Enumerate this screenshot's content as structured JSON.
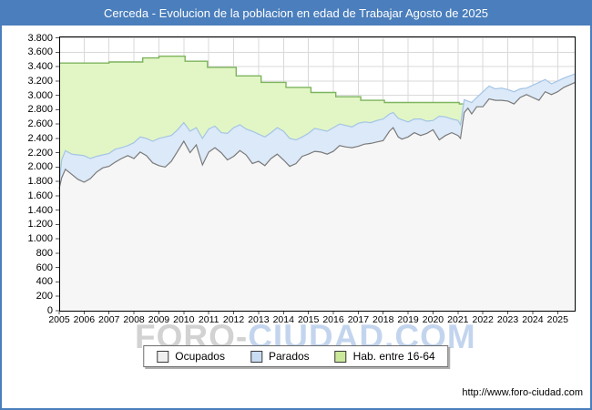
{
  "title": "Cerceda - Evolucion de la poblacion en edad de Trabajar Agosto de 2025",
  "watermark": {
    "part1": "FORO-",
    "part2": "CIUDAD.COM"
  },
  "footer": {
    "url": "http://www.foro-ciudad.com"
  },
  "legend": [
    {
      "label": "Ocupados",
      "swatch": "#efefef"
    },
    {
      "label": "Parados",
      "swatch": "#c9ddf2"
    },
    {
      "label": "Hab. entre 16-64",
      "swatch": "#cbe89b"
    }
  ],
  "colors": {
    "titlebar": "#4a7ebc",
    "frame_border": "#4a7ebc",
    "grid": "#d9d9d9",
    "plot_border": "#000000",
    "hab_fill": "#e2f6c5",
    "hab_line": "#7db45e",
    "parados_fill": "#dbe9f8",
    "parados_line": "#a4c4e4",
    "ocupados_fill": "#f6f6f6",
    "ocupados_line": "#7a7a7a"
  },
  "chart_data": {
    "type": "area",
    "title": "Cerceda - Evolucion de la poblacion en edad de Trabajar Agosto de 2025",
    "xlabel": "",
    "ylabel": "",
    "grid": true,
    "legend_position": "bottom",
    "xlim": [
      2005,
      2025.72
    ],
    "ylim": [
      0,
      3820
    ],
    "x_ticks": [
      2005,
      2006,
      2007,
      2008,
      2009,
      2010,
      2011,
      2012,
      2013,
      2014,
      2015,
      2016,
      2017,
      2018,
      2019,
      2020,
      2021,
      2022,
      2023,
      2024,
      2025
    ],
    "y_tick_values": [
      0,
      200,
      400,
      600,
      800,
      1000,
      1200,
      1400,
      1600,
      1800,
      2000,
      2200,
      2400,
      2600,
      2800,
      3000,
      3200,
      3400,
      3600,
      3800
    ],
    "y_tick_labels": [
      "0",
      "200",
      "400",
      "600",
      "800",
      "1.000",
      "1.200",
      "1.400",
      "1.600",
      "1.800",
      "2.000",
      "2.200",
      "2.400",
      "2.600",
      "2.800",
      "3.000",
      "3.200",
      "3.400",
      "3.600",
      "3.800"
    ],
    "x": [
      2005,
      2005.1,
      2005.25,
      2005.5,
      2005.75,
      2006,
      2006.25,
      2006.5,
      2006.75,
      2007,
      2007.25,
      2007.5,
      2007.75,
      2008,
      2008.25,
      2008.5,
      2008.75,
      2009,
      2009.25,
      2009.5,
      2009.75,
      2010,
      2010.25,
      2010.5,
      2010.75,
      2011,
      2011.25,
      2011.5,
      2011.75,
      2012,
      2012.25,
      2012.5,
      2012.75,
      2013,
      2013.25,
      2013.5,
      2013.75,
      2014,
      2014.25,
      2014.5,
      2014.75,
      2015,
      2015.25,
      2015.5,
      2015.75,
      2016,
      2016.25,
      2016.5,
      2016.75,
      2017,
      2017.25,
      2017.5,
      2017.75,
      2018,
      2018.25,
      2018.4,
      2018.6,
      2018.75,
      2019,
      2019.25,
      2019.5,
      2019.75,
      2020,
      2020.25,
      2020.5,
      2020.75,
      2021,
      2021.1,
      2021.25,
      2021.4,
      2021.55,
      2021.75,
      2022,
      2022.25,
      2022.5,
      2022.75,
      2023,
      2023.25,
      2023.5,
      2023.75,
      2024,
      2024.25,
      2024.5,
      2024.75,
      2025,
      2025.25,
      2025.7
    ],
    "series": [
      {
        "name": "Ocupados",
        "values": [
          1700,
          1850,
          1970,
          1900,
          1830,
          1790,
          1840,
          1930,
          1990,
          2010,
          2070,
          2120,
          2160,
          2120,
          2210,
          2160,
          2060,
          2020,
          2000,
          2080,
          2220,
          2360,
          2200,
          2310,
          2030,
          2210,
          2270,
          2200,
          2100,
          2150,
          2230,
          2170,
          2050,
          2080,
          2020,
          2120,
          2180,
          2100,
          2010,
          2050,
          2150,
          2180,
          2220,
          2210,
          2180,
          2220,
          2300,
          2280,
          2270,
          2290,
          2320,
          2330,
          2350,
          2370,
          2500,
          2550,
          2420,
          2390,
          2420,
          2480,
          2440,
          2470,
          2520,
          2380,
          2440,
          2480,
          2440,
          2400,
          2760,
          2820,
          2740,
          2840,
          2840,
          2950,
          2930,
          2930,
          2920,
          2880,
          2970,
          3010,
          2970,
          2930,
          3050,
          3010,
          3050,
          3110,
          3180
        ]
      },
      {
        "name": "Parados",
        "stacked_on": "Ocupados",
        "values": [
          60,
          250,
          260,
          280,
          340,
          370,
          280,
          220,
          180,
          180,
          180,
          150,
          140,
          220,
          210,
          240,
          300,
          380,
          420,
          360,
          300,
          260,
          300,
          240,
          370,
          320,
          300,
          280,
          370,
          400,
          360,
          360,
          450,
          380,
          400,
          360,
          370,
          400,
          390,
          330,
          270,
          290,
          320,
          310,
          320,
          330,
          300,
          300,
          290,
          320,
          310,
          290,
          300,
          300,
          240,
          210,
          260,
          270,
          210,
          190,
          230,
          170,
          130,
          330,
          260,
          190,
          210,
          190,
          180,
          100,
          160,
          130,
          210,
          180,
          160,
          170,
          160,
          170,
          120,
          90,
          170,
          250,
          170,
          150,
          150,
          130,
          120
        ]
      },
      {
        "name": "Hab. entre 16-64",
        "style": "step",
        "step_points": [
          [
            2005.0,
            3450
          ],
          [
            2007.0,
            3450
          ],
          [
            2007.0,
            3465
          ],
          [
            2008.35,
            3465
          ],
          [
            2008.35,
            3520
          ],
          [
            2009.0,
            3520
          ],
          [
            2009.0,
            3545
          ],
          [
            2010.05,
            3545
          ],
          [
            2010.05,
            3475
          ],
          [
            2010.95,
            3475
          ],
          [
            2010.95,
            3390
          ],
          [
            2012.1,
            3390
          ],
          [
            2012.1,
            3270
          ],
          [
            2013.1,
            3270
          ],
          [
            2013.1,
            3180
          ],
          [
            2014.1,
            3180
          ],
          [
            2014.1,
            3110
          ],
          [
            2015.1,
            3110
          ],
          [
            2015.1,
            3040
          ],
          [
            2016.1,
            3040
          ],
          [
            2016.1,
            2980
          ],
          [
            2017.1,
            2980
          ],
          [
            2017.1,
            2930
          ],
          [
            2018.05,
            2930
          ],
          [
            2018.05,
            2900
          ],
          [
            2021.05,
            2900
          ],
          [
            2021.05,
            2880
          ],
          [
            2025.7,
            2880
          ]
        ]
      }
    ]
  }
}
